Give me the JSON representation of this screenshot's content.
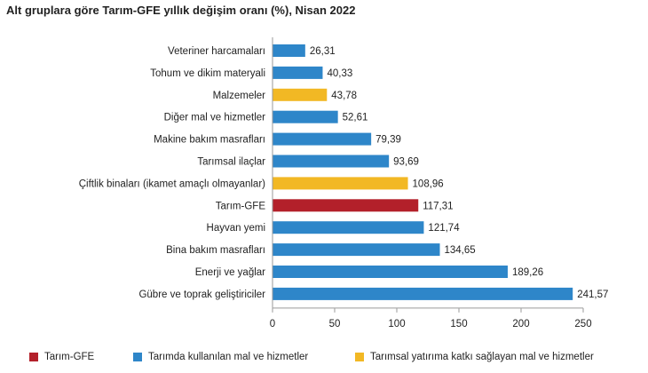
{
  "chart_data": {
    "type": "bar",
    "orientation": "horizontal",
    "title": "Alt gruplara göre Tarım-GFE yıllık değişim oranı (%), Nisan 2022",
    "categories": [
      "Veteriner harcamaları",
      "Tohum ve dikim materyali",
      "Malzemeler",
      "Diğer mal ve hizmetler",
      "Makine bakım masrafları",
      "Tarımsal ilaçlar",
      "Çiftlik binaları (ikamet amaçlı olmayanlar)",
      "Tarım-GFE",
      "Hayvan yemi",
      "Bina bakım masrafları",
      "Enerji ve yağlar",
      "Gübre ve toprak geliştiriciler"
    ],
    "values": [
      26.31,
      40.33,
      43.78,
      52.61,
      79.39,
      93.69,
      108.96,
      117.31,
      121.74,
      134.65,
      189.26,
      241.57
    ],
    "value_labels": [
      "26,31",
      "40,33",
      "43,78",
      "52,61",
      "79,39",
      "93,69",
      "108,96",
      "117,31",
      "121,74",
      "134,65",
      "189,26",
      "241,57"
    ],
    "groups": [
      "blue",
      "blue",
      "yellow",
      "blue",
      "blue",
      "blue",
      "yellow",
      "red",
      "blue",
      "blue",
      "blue",
      "blue"
    ],
    "xlim": [
      0,
      250
    ],
    "xticks": [
      0,
      50,
      100,
      150,
      200,
      250
    ],
    "grid": false,
    "legend_position": "bottom",
    "legend": [
      {
        "key": "red",
        "label": "Tarım-GFE",
        "color": "#b3202a"
      },
      {
        "key": "blue",
        "label": "Tarımda kullanılan mal ve hizmetler",
        "color": "#2e86c9"
      },
      {
        "key": "yellow",
        "label": "Tarımsal yatırıma katkı sağlayan mal ve hizmetler",
        "color": "#f2b824"
      }
    ]
  }
}
